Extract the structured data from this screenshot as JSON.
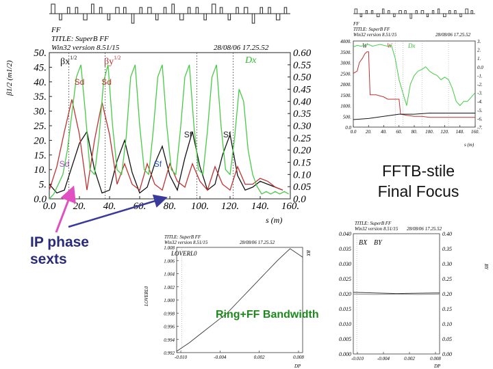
{
  "slide": {
    "fftb_label_line1": "FFTB-stile",
    "fftb_label_line2": "Final Focus",
    "ip_label_line1": "IP phase",
    "ip_label_line2": "sexts",
    "bandwidth_label": "Ring+FF Bandwidth",
    "colors": {
      "pink_arrow": "#e050c0",
      "blue_arrow": "#3a3a9a",
      "bandwidth_text": "#1a8a1a"
    }
  },
  "chart_data": [
    {
      "id": "main-optics",
      "type": "line",
      "header": {
        "ff": "FF",
        "title": "TITLE: SuperB FF",
        "version": "Win32 version 8.51/15",
        "date": "28/08/06  17.25.52"
      },
      "legend": {
        "betx": "βx",
        "bety": "βy",
        "sup": "1/2",
        "dx": "Dx"
      },
      "ylabel": "β1/2 (m1/2)",
      "xlabel": "s (m)",
      "xlim": [
        0,
        160
      ],
      "ylim_left": [
        0,
        50
      ],
      "ylim_right": [
        0,
        0.6
      ],
      "xticks": [
        "0.0",
        "20.",
        "40.",
        "60.",
        "80.",
        "100.",
        "120.",
        "140.",
        "160."
      ],
      "yticks_left": [
        "0.0",
        "5.",
        "10.",
        "15.",
        "20.",
        "25.",
        "30.",
        "35.",
        "40.",
        "45.",
        "50."
      ],
      "yticks_right": [
        "0.0",
        "0.05",
        "0.10",
        "0.15",
        "0.20",
        "0.25",
        "0.30",
        "0.35",
        "0.40",
        "0.45",
        "0.50",
        "0.55",
        "0.60"
      ],
      "annotations": [
        {
          "text": "Sd",
          "x": 20,
          "y": 39,
          "color": "#c03030"
        },
        {
          "text": "Sd",
          "x": 38,
          "y": 39,
          "color": "#c03030"
        },
        {
          "text": "Sf",
          "x": 92,
          "y": 21,
          "color": "#222222"
        },
        {
          "text": "Sf",
          "x": 118,
          "y": 21,
          "color": "#222222"
        },
        {
          "text": "Sd",
          "x": 10,
          "y": 11,
          "color": "#a050c0"
        },
        {
          "text": "Sf",
          "x": 72,
          "y": 11,
          "color": "#2050c0"
        }
      ],
      "markers_x": [
        13,
        37,
        98,
        122
      ],
      "series": [
        {
          "name": "βx",
          "axis": "left",
          "color": "#111111",
          "x": [
            0,
            5,
            10,
            15,
            20,
            25,
            30,
            35,
            40,
            45,
            50,
            55,
            60,
            65,
            70,
            75,
            80,
            85,
            90,
            95,
            100,
            105,
            110,
            115,
            120,
            125,
            130,
            135,
            140,
            145,
            150,
            155
          ],
          "y": [
            5,
            2,
            3,
            11,
            19,
            23,
            10,
            2,
            3,
            13,
            20,
            9,
            2,
            4,
            12,
            18,
            8,
            3,
            14,
            23,
            11,
            3,
            5,
            15,
            22,
            8,
            3,
            4,
            6,
            5,
            4,
            3
          ]
        },
        {
          "name": "βy",
          "axis": "left",
          "color": "#c03030",
          "x": [
            0,
            5,
            10,
            15,
            20,
            25,
            30,
            35,
            40,
            45,
            50,
            55,
            60,
            65,
            70,
            75,
            80,
            85,
            90,
            95,
            100,
            105,
            110,
            115,
            120,
            125,
            130,
            135,
            140,
            145,
            150,
            155
          ],
          "y": [
            3,
            11,
            23,
            34,
            22,
            3,
            20,
            33,
            22,
            5,
            12,
            5,
            3,
            12,
            5,
            3,
            12,
            6,
            4,
            12,
            6,
            3,
            11,
            5,
            3,
            11,
            5,
            5,
            7,
            6,
            4,
            3
          ]
        },
        {
          "name": "Dx",
          "axis": "right",
          "color": "#44cc44",
          "x": [
            0,
            3,
            6,
            9,
            12,
            15,
            18,
            21,
            24,
            27,
            30,
            33,
            36,
            39,
            42,
            45,
            48,
            51,
            54,
            57,
            60,
            63,
            66,
            69,
            72,
            75,
            78,
            81,
            84,
            87,
            90,
            93,
            96,
            99,
            102,
            105,
            108,
            111,
            114,
            117,
            120,
            123,
            126,
            129,
            132,
            135,
            138,
            141,
            144,
            147,
            150,
            153,
            156,
            159
          ],
          "y": [
            0.0,
            0.02,
            0.06,
            0.1,
            0.2,
            0.35,
            0.5,
            0.55,
            0.35,
            0.12,
            0.1,
            0.25,
            0.48,
            0.55,
            0.3,
            0.12,
            0.1,
            0.25,
            0.5,
            0.55,
            0.3,
            0.12,
            0.1,
            0.28,
            0.5,
            0.55,
            0.3,
            0.12,
            0.1,
            0.28,
            0.5,
            0.55,
            0.3,
            0.12,
            0.1,
            0.28,
            0.5,
            0.55,
            0.3,
            0.12,
            0.1,
            0.25,
            0.45,
            0.4,
            0.2,
            0.1,
            0.05,
            0.02,
            0.03,
            0.02,
            0.03,
            0.02,
            0.03,
            0.02
          ]
        }
      ]
    },
    {
      "id": "top-right-functions",
      "type": "line",
      "header": {
        "ff": "FF",
        "title": "TITLE: SuperB FF",
        "version": "Win32 version 8.51/15",
        "date": "28/08/06  17.25.52"
      },
      "legend": {
        "w": "W",
        "dx": "Dx",
        "w_red": "W"
      },
      "xlabel": "s (m)",
      "xlim": [
        0,
        160
      ],
      "ylim_left": [
        0,
        4000
      ],
      "ylim_right": [
        -7,
        3
      ],
      "xticks": [
        "0.0",
        "20.",
        "40.",
        "60.",
        "80.",
        "100.",
        "120.",
        "140.",
        "160."
      ],
      "yticks_left": [
        "0.0",
        "500.",
        "1000.",
        "1500.",
        "2000.",
        "2500.",
        "3000.",
        "3500.",
        "4000."
      ],
      "yticks_right": [
        "-7.",
        "-6.",
        "-5.",
        "-4.",
        "-3.",
        "-2.",
        "-1.",
        "0.0",
        "1.",
        "2.",
        "3."
      ],
      "series": [
        {
          "name": "W (red)",
          "color": "#c03030",
          "axis": "left",
          "x": [
            0,
            5,
            8,
            12,
            15,
            18,
            20,
            22,
            30,
            40,
            45,
            50,
            55,
            60,
            62,
            70,
            80,
            90,
            100,
            120,
            140,
            160
          ],
          "y": [
            2500,
            2600,
            3000,
            3200,
            3400,
            3500,
            3500,
            1500,
            1500,
            1400,
            1300,
            1300,
            1300,
            1300,
            600,
            550,
            500,
            500,
            450,
            450,
            450,
            450
          ]
        },
        {
          "name": "W (black)",
          "color": "#111111",
          "axis": "left",
          "x": [
            0,
            20,
            40,
            60,
            80,
            100,
            120,
            140,
            160
          ],
          "y": [
            350,
            400,
            500,
            600,
            600,
            650,
            650,
            650,
            650
          ]
        },
        {
          "name": "Dx",
          "color": "#44cc44",
          "axis": "right",
          "x": [
            0,
            5,
            10,
            15,
            20,
            25,
            30,
            35,
            40,
            45,
            50,
            55,
            60,
            65,
            70,
            75,
            80,
            85,
            90,
            95,
            100,
            105,
            110,
            115,
            120,
            125,
            130,
            135,
            140,
            145,
            150,
            155,
            160
          ],
          "y": [
            2.3,
            2.5,
            2.4,
            2.5,
            2.6,
            2.4,
            2.5,
            2.6,
            2.5,
            2.4,
            2.5,
            1.0,
            -1.5,
            -3.0,
            -4.5,
            -2.0,
            -1.0,
            -0.5,
            -0.3,
            0.0,
            -0.5,
            -0.8,
            -1.0,
            -1.5,
            -1.2,
            -1.5,
            -2.5,
            -4.0,
            -4.5,
            -4.0,
            -4.0,
            -3.5,
            -3.0
          ]
        }
      ]
    },
    {
      "id": "bottom-middle-l0",
      "type": "line",
      "header": {
        "title": "TITLE: SuperB FF",
        "version": "Win32 version 8.51/15",
        "date": "28/08/06  17.25.52"
      },
      "legend": {
        "lo": "LOVERL0"
      },
      "ylabel": "LOVERL0",
      "right_label": "BX",
      "xlabel": "DP",
      "xlim": [
        -0.01,
        0.01
      ],
      "ylim": [
        0.992,
        1.008
      ],
      "xticks": [
        "-0.010",
        "-0.004",
        "0.002",
        "0.008"
      ],
      "yticks": [
        "0.992",
        "0.994",
        "0.996",
        "0.998",
        "1.000",
        "1.002",
        "1.004",
        "1.006",
        "1.008"
      ],
      "series": [
        {
          "name": "LOVERL0",
          "color": "#333333",
          "x": [
            -0.01,
            -0.008,
            -0.006,
            -0.004,
            -0.002,
            0.0,
            0.002,
            0.004,
            0.006,
            0.008,
            0.01
          ],
          "y": [
            0.9922,
            0.9935,
            0.995,
            0.9965,
            0.998,
            1.0,
            1.002,
            1.004,
            1.006,
            1.0078,
            1.0065
          ]
        }
      ]
    },
    {
      "id": "bottom-right-bxby",
      "type": "line",
      "header": {
        "title": "TITLE: SuperB FF",
        "version": "Win32 version 8.51/15",
        "date": "28/08/06  17.25.52"
      },
      "legend": {
        "bx": "BX",
        "by": "BY"
      },
      "right_label": "BY",
      "xlabel": "DP",
      "xlim": [
        -0.01,
        0.01
      ],
      "ylim_left": [
        0,
        0.04
      ],
      "ylim_right": [
        0,
        0.4
      ],
      "xticks": [
        "-0.010",
        "-0.004",
        "0.002",
        "0.008"
      ],
      "yticks_left": [
        "0.000",
        "0.005",
        "0.010",
        "0.015",
        "0.020",
        "0.025",
        "0.030",
        "0.035",
        "0.040"
      ],
      "yticks_right": [
        "0.00",
        "0.05",
        "0.10",
        "0.15",
        "0.20",
        "0.25",
        "0.30",
        "0.35",
        "0.40"
      ],
      "series": [
        {
          "name": "BX",
          "color": "#333333",
          "axis": "left",
          "x": [
            -0.01,
            -0.005,
            0.0,
            0.005,
            0.01
          ],
          "y": [
            0.0205,
            0.0203,
            0.0201,
            0.0202,
            0.0203
          ]
        },
        {
          "name": "BY",
          "color": "#888888",
          "axis": "right",
          "x": [
            -0.01,
            -0.005,
            0.0,
            0.005,
            0.01
          ],
          "y": [
            0.199,
            0.198,
            0.199,
            0.198,
            0.199
          ]
        }
      ]
    }
  ]
}
